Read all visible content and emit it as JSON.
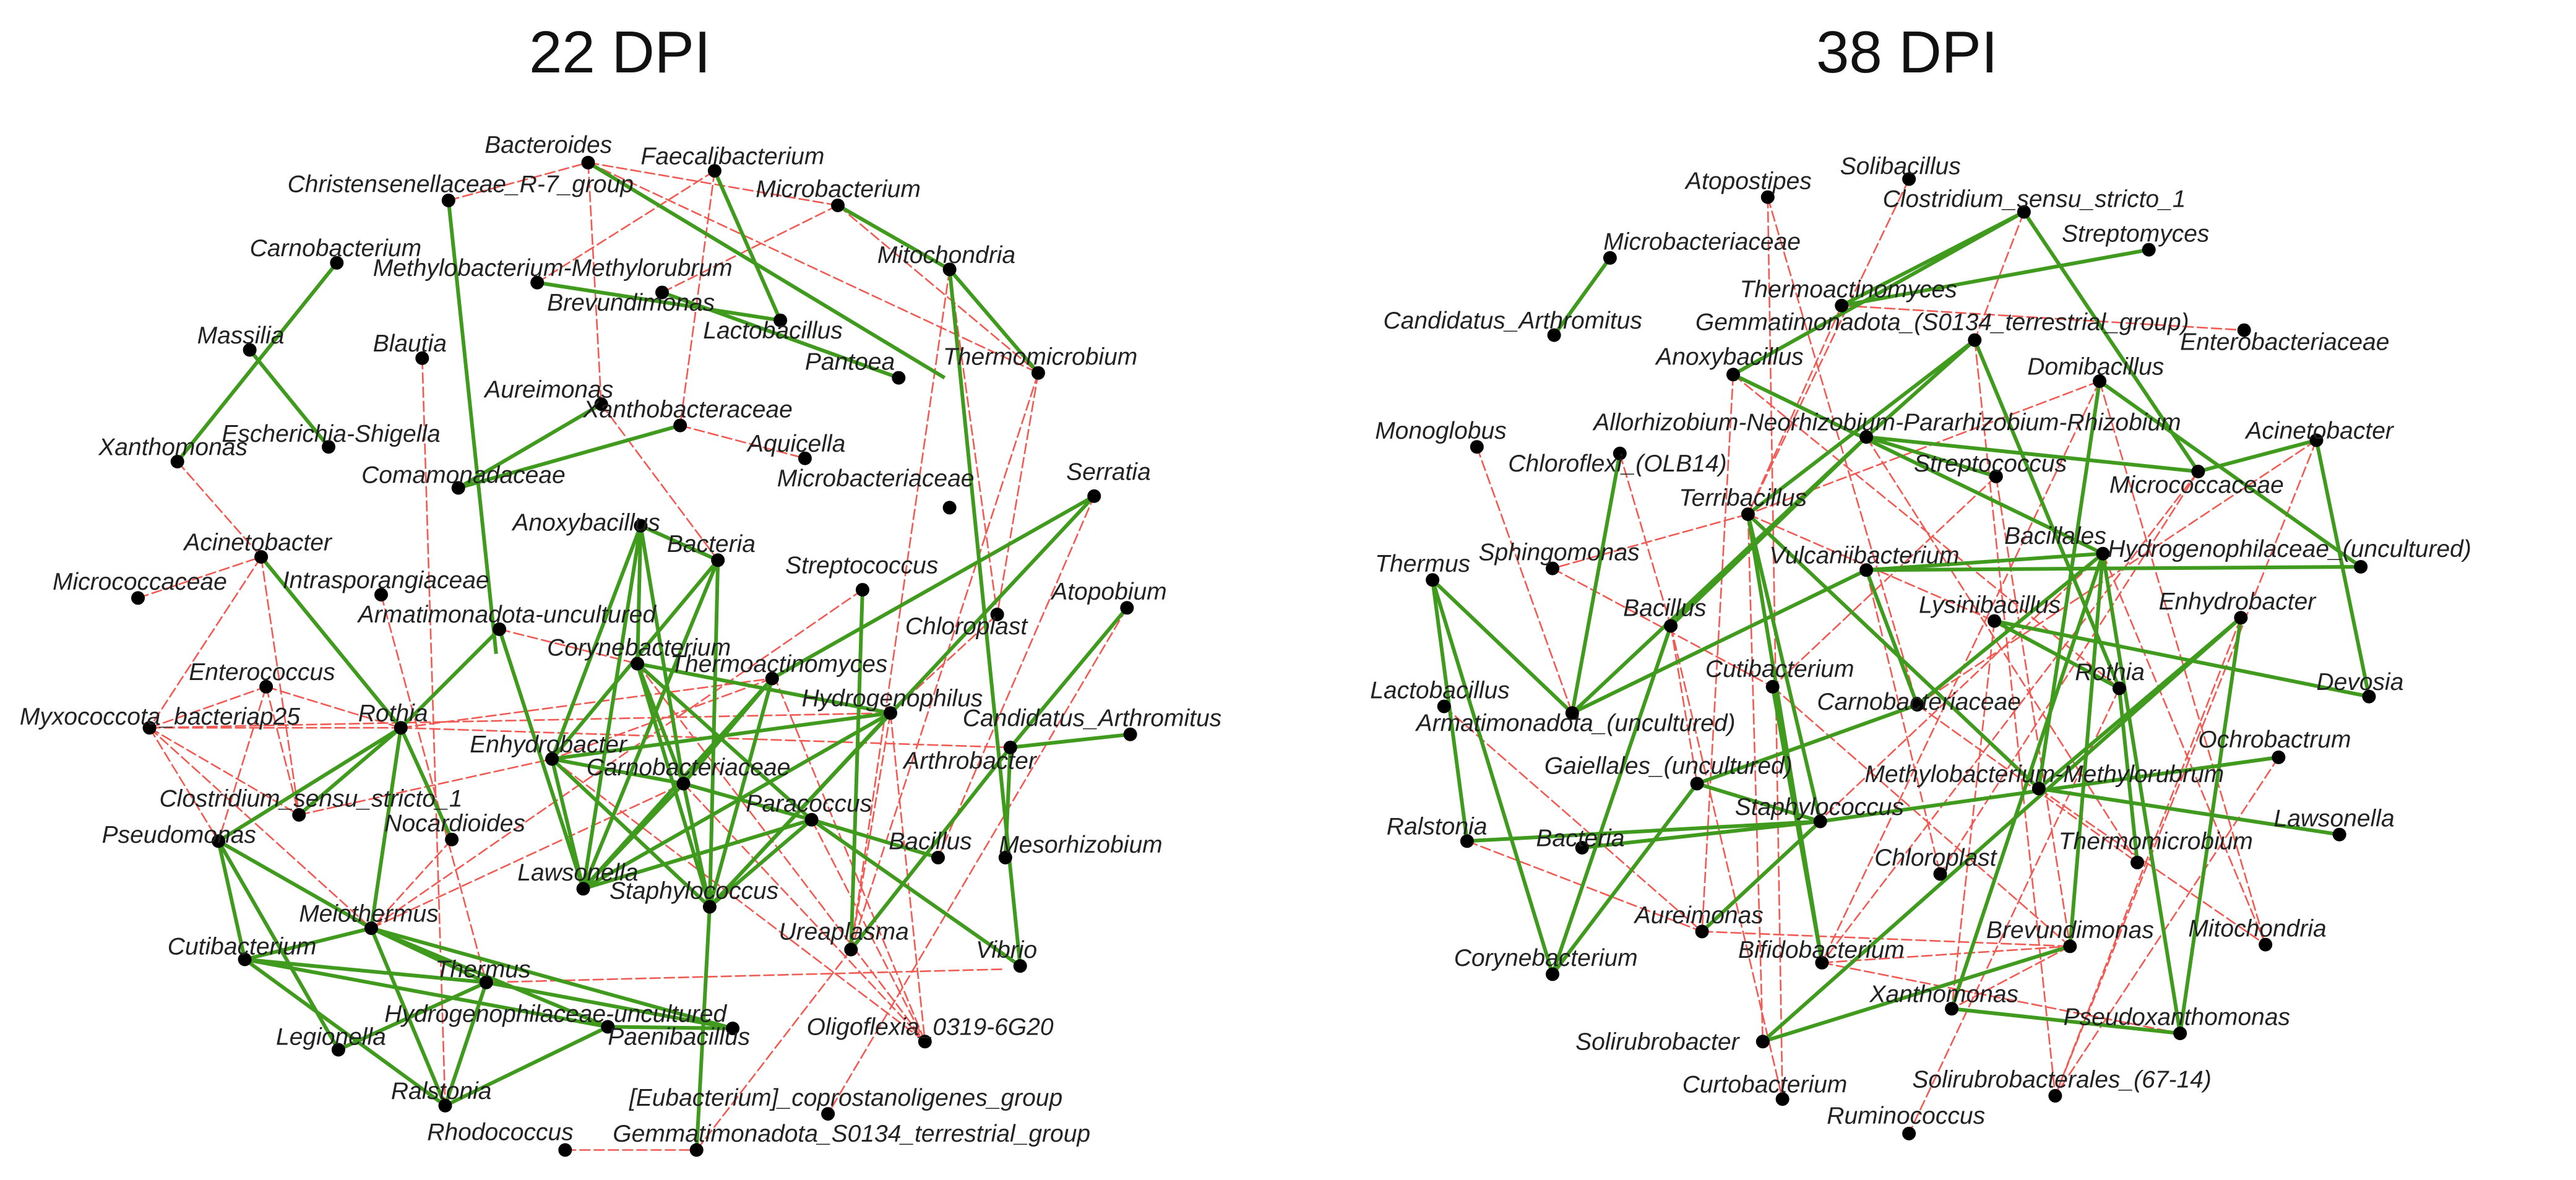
{
  "colors": {
    "positive": "#3f9a1d",
    "negative": "#f05a52",
    "node": "#000000"
  },
  "panels": [
    {
      "title": "22 DPI",
      "nodes": [
        "Bacteroides",
        "Faecalibacterium",
        "Christensenellaceae_R-7_group",
        "Microbacterium",
        "Carnobacterium",
        "Methylobacterium-Methylorubrum",
        "Mitochondria",
        "Brevundimonas",
        "Lactobacillus",
        "Massilia",
        "Blautia",
        "Pantoea",
        "Thermomicrobium",
        "Aureimonas",
        "Xanthobacteraceae",
        "Escherichia-Shigella",
        "Xanthomonas",
        "Aquicella",
        "Comamonadaceae",
        "Microbacteriaceae",
        "Serratia",
        "Anoxybacillus",
        "Acinetobacter",
        "Bacteria",
        "Streptococcus",
        "Intrasporangiaceae",
        "Micrococcaceae",
        "Armatimonadota-uncultured",
        "Atopobium",
        "Chloroplast",
        "Corynebacterium",
        "Enterococcus",
        "Thermoactinomyces",
        "Hydrogenophilus",
        "Myxococcota_bacteriap25",
        "Rothia",
        "Candidatus_Arthromitus",
        "Enhydrobacter",
        "Arthrobacter",
        "Carnobacteriaceae",
        "Clostridium_sensu_stricto_1",
        "Paracoccus",
        "Nocardioides",
        "Pseudomonas",
        "Bacillus",
        "Mesorhizobium",
        "Lawsonella",
        "Staphylococcus",
        "Meiothermus",
        "Ureaplasma",
        "Vibrio",
        "Cutibacterium",
        "Thermus",
        "Hydrogenophilaceae-uncultured",
        "Oligoflexia_0319-6G20",
        "Paenibacillus",
        "Legionella",
        "Ralstonia",
        "[Eubacterium]_coprostanoligenes_group",
        "Rhodococcus",
        "Gemmatimonadota_S0134_terrestrial_group"
      ]
    },
    {
      "title": "38 DPI",
      "nodes": [
        "Solibacillus",
        "Atopostipes",
        "Clostridium_sensu_stricto_1",
        "Streptomyces",
        "Microbacteriaceae",
        "Thermoactinomyces",
        "Gemmatimonadota_(S0134_terrestrial_group)",
        "Candidatus_Arthromitus",
        "Enterobacteriaceae",
        "Anoxybacillus",
        "Domibacillus",
        "Monoglobus",
        "Allorhizobium-Neorhizobium-Pararhizobium-Rhizobium",
        "Acinetobacter",
        "Chloroflexi_(OLB14)",
        "Streptococcus",
        "Micrococcaceae",
        "Terribacillus",
        "Bacillales",
        "Sphingomonas",
        "Thermus",
        "Vulcaniibacterium",
        "Hydrogenophilaceae_(uncultured)",
        "Lysinibacillus",
        "Bacillus",
        "Enhydrobacter",
        "Cutibacterium",
        "Lactobacillus",
        "Rothia",
        "Devosia",
        "Carnobacteriaceae",
        "Armatimonadota_(uncultured)",
        "Ochrobactrum",
        "Gaiellales_(uncultured)",
        "Methylobacterium-Methylorubrum",
        "Staphylococcus",
        "Lawsonella",
        "Ralstonia",
        "Bacteria",
        "Thermomicrobium",
        "Chloroplast",
        "Brevundimonas",
        "Aureimonas",
        "Mitochondria",
        "Bifidobacterium",
        "Corynebacterium",
        "Xanthomonas",
        "Pseudoxanthomonas",
        "Solirubrobacter",
        "Curtobacterium",
        "Solirubrobacterales_(67-14)",
        "Ruminococcus"
      ]
    }
  ]
}
